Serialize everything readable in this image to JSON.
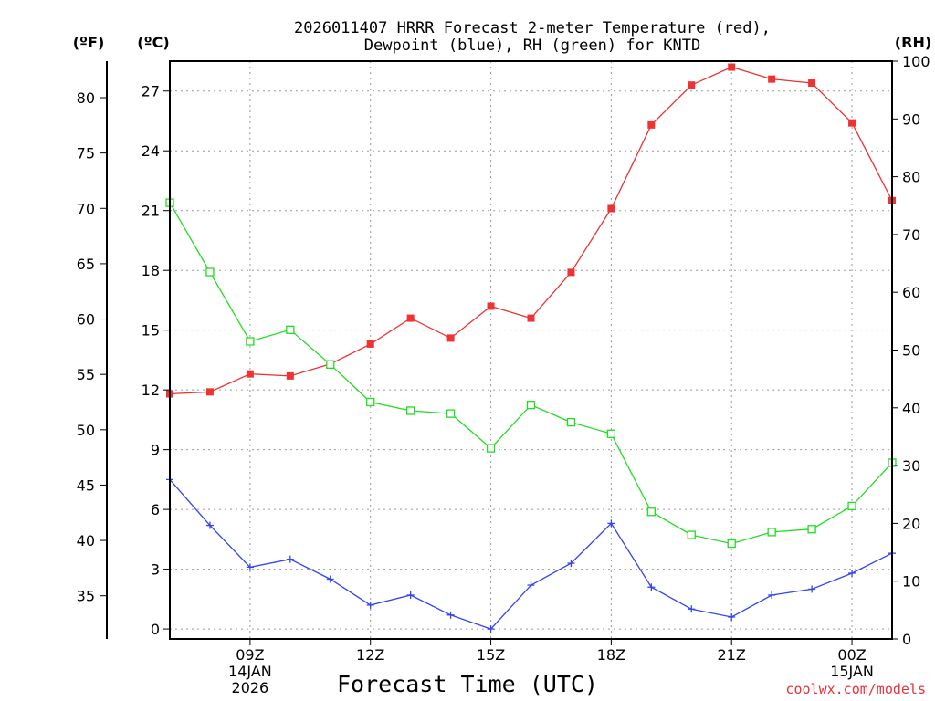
{
  "chart_data": {
    "type": "line",
    "title_line1": "2026011407 HRRR Forecast 2-meter Temperature (red),",
    "title_line2": "Dewpoint (blue), RH (green) for KNTD",
    "xlabel": "Forecast Time (UTC)",
    "credit": "coolwx.com/models",
    "units": {
      "fahrenheit": "(ºF)",
      "celsius": "(ºC)",
      "rh": "(RH)"
    },
    "x_hours": [
      7,
      8,
      9,
      10,
      11,
      12,
      13,
      14,
      15,
      16,
      17,
      18,
      19,
      20,
      21,
      22,
      23,
      24,
      25
    ],
    "xlim": [
      7,
      25
    ],
    "x_ticks": [
      {
        "x": 9,
        "label": "09Z",
        "sub1": "14JAN",
        "sub2": "2026"
      },
      {
        "x": 12,
        "label": "12Z",
        "sub1": "",
        "sub2": ""
      },
      {
        "x": 15,
        "label": "15Z",
        "sub1": "",
        "sub2": ""
      },
      {
        "x": 18,
        "label": "18Z",
        "sub1": "",
        "sub2": ""
      },
      {
        "x": 21,
        "label": "21Z",
        "sub1": "",
        "sub2": ""
      },
      {
        "x": 24,
        "label": "00Z",
        "sub1": "15JAN",
        "sub2": ""
      }
    ],
    "celsius_axis": {
      "range": [
        -0.5,
        28.5
      ],
      "ticks": [
        0,
        3,
        6,
        9,
        12,
        15,
        18,
        21,
        24,
        27
      ]
    },
    "fahrenheit_axis": {
      "ticks": [
        35,
        40,
        45,
        50,
        55,
        60,
        65,
        70,
        75,
        80
      ]
    },
    "rh_axis": {
      "range": [
        0,
        100
      ],
      "ticks": [
        0,
        10,
        20,
        30,
        40,
        50,
        60,
        70,
        80,
        90,
        100
      ]
    },
    "series": [
      {
        "name": "Temperature",
        "color": "#ee3333",
        "axis": "celsius",
        "marker": "filled-square",
        "values": [
          11.8,
          11.9,
          12.8,
          12.7,
          13.3,
          14.3,
          15.6,
          14.6,
          16.2,
          15.6,
          17.9,
          21.1,
          25.3,
          27.3,
          28.2,
          27.6,
          27.4,
          25.4,
          21.5
        ]
      },
      {
        "name": "Dewpoint",
        "color": "#3344ee",
        "axis": "celsius",
        "marker": "plus",
        "values": [
          7.5,
          5.2,
          3.1,
          3.5,
          2.5,
          1.2,
          1.7,
          0.7,
          0.0,
          2.2,
          3.3,
          5.3,
          2.1,
          1.0,
          0.6,
          1.7,
          2.0,
          2.8,
          3.8
        ]
      },
      {
        "name": "Relative Humidity",
        "color": "#22dd22",
        "axis": "rh",
        "marker": "open-square",
        "values": [
          75.5,
          63.5,
          51.5,
          53.5,
          47.5,
          41,
          39.5,
          39,
          33,
          40.5,
          37.5,
          35.5,
          22,
          18,
          16.5,
          18.5,
          19,
          23,
          30.5
        ]
      }
    ]
  }
}
